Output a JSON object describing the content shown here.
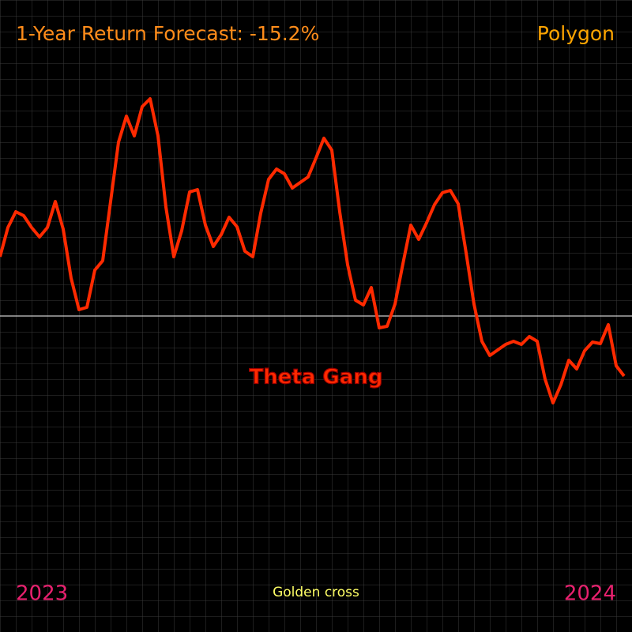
{
  "chart_data": {
    "type": "line",
    "title": "1-Year Return Forecast: -15.2%",
    "source": "Polygon",
    "watermark": "Theta Gang",
    "annotation": "Golden cross",
    "start_label": "2023",
    "end_label": "2024",
    "color": "#ff2a00",
    "reference_line": 0,
    "ylim": [
      -400,
      400
    ],
    "grid": true,
    "values": [
      75,
      112,
      132,
      127,
      112,
      100,
      112,
      145,
      110,
      48,
      8,
      11,
      58,
      70,
      145,
      220,
      253,
      228,
      265,
      275,
      228,
      138,
      75,
      108,
      157,
      160,
      115,
      88,
      103,
      125,
      113,
      82,
      75,
      130,
      173,
      186,
      180,
      162,
      169,
      176,
      200,
      225,
      210,
      132,
      65,
      20,
      14,
      36,
      -15,
      -13,
      15,
      66,
      115,
      97,
      118,
      141,
      156,
      159,
      142,
      80,
      15,
      -32,
      -50,
      -43,
      -36,
      -32,
      -36,
      -26,
      -32,
      -80,
      -110,
      -87,
      -56,
      -67,
      -44,
      -33,
      -35,
      -11,
      -63,
      -76
    ]
  }
}
